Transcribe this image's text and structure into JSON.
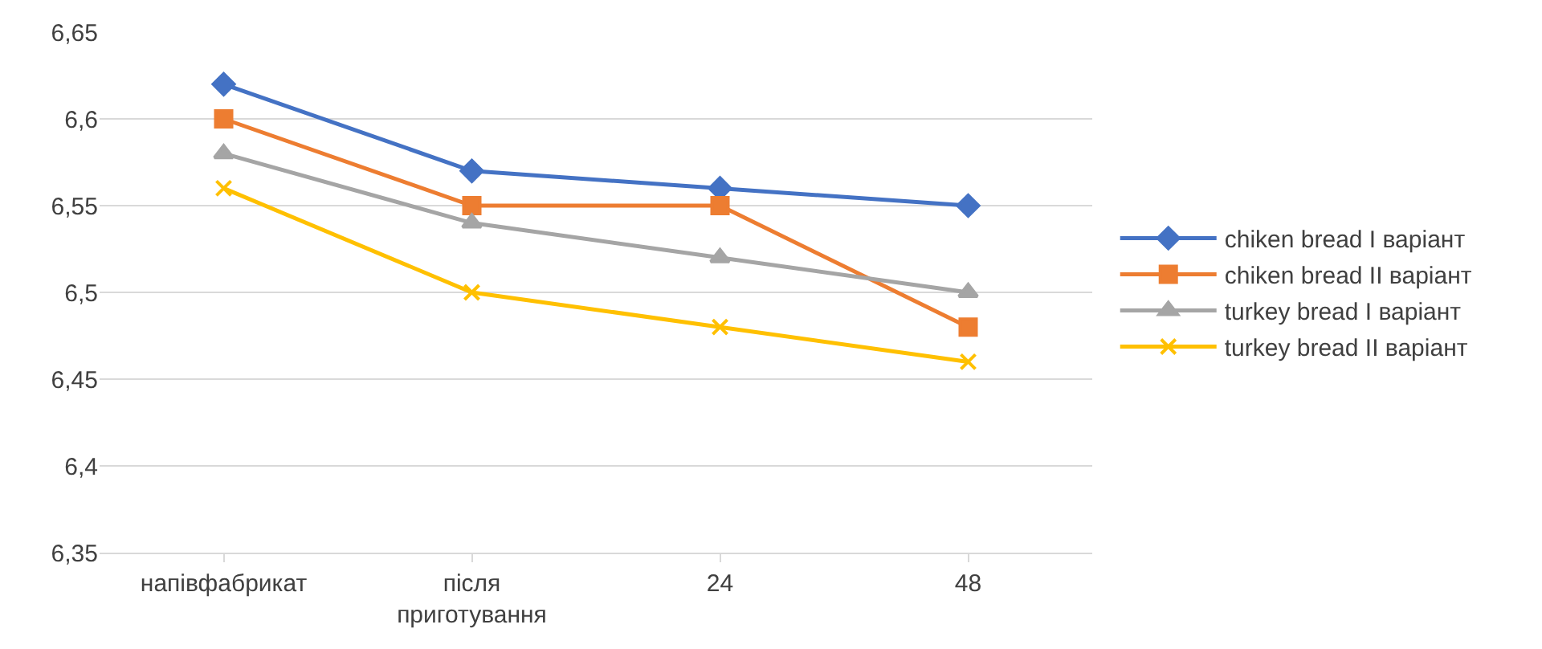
{
  "chart_data": {
    "type": "line",
    "categories": [
      "напівфабрикат",
      "після приготування",
      "24",
      "48"
    ],
    "series": [
      {
        "name": "chiken bread I варіант",
        "color": "#4472c4",
        "marker": "diamond",
        "values": [
          6.62,
          6.57,
          6.56,
          6.55
        ]
      },
      {
        "name": "chiken bread II варіант",
        "color": "#ed7d31",
        "marker": "square",
        "values": [
          6.6,
          6.55,
          6.55,
          6.48
        ]
      },
      {
        "name": "turkey bread I варіант",
        "color": "#a5a5a5",
        "marker": "triangle",
        "values": [
          6.58,
          6.54,
          6.52,
          6.5
        ]
      },
      {
        "name": "turkey bread II варіант",
        "color": "#ffc000",
        "marker": "cross",
        "values": [
          6.56,
          6.5,
          6.48,
          6.46
        ]
      }
    ],
    "ylim": [
      6.35,
      6.65
    ],
    "yticks": [
      {
        "value": 6.35,
        "label": "6,35"
      },
      {
        "value": 6.4,
        "label": "6,4"
      },
      {
        "value": 6.45,
        "label": "6,45"
      },
      {
        "value": 6.5,
        "label": "6,5"
      },
      {
        "value": 6.55,
        "label": "6,55"
      },
      {
        "value": 6.6,
        "label": "6,6"
      },
      {
        "value": 6.65,
        "label": "6,65"
      }
    ],
    "grid": "y",
    "legend": "right",
    "line_style": "solid"
  }
}
